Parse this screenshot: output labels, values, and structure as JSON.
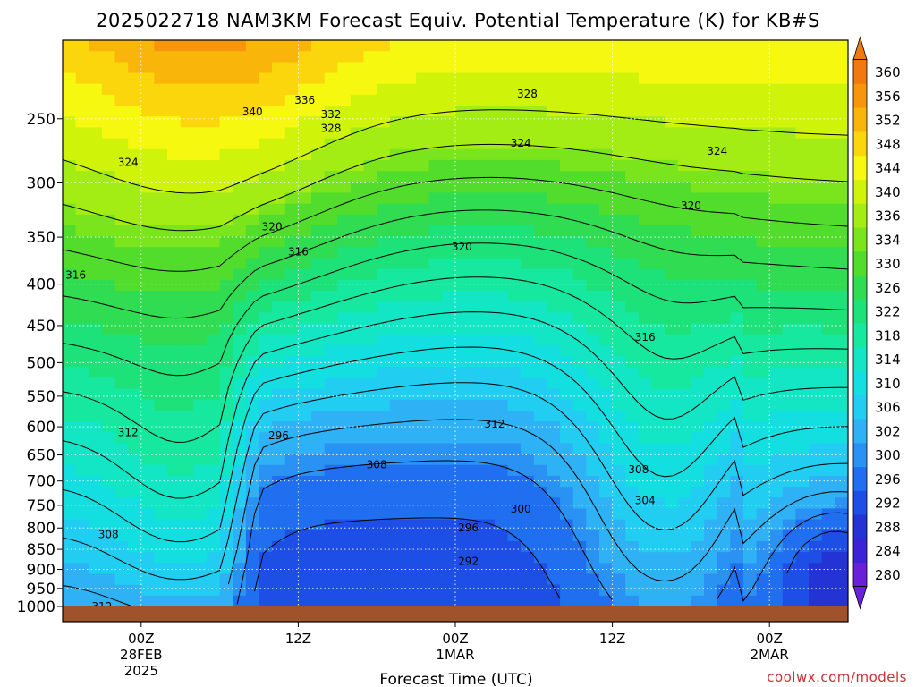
{
  "title": "2025022718 NAM3KM Forecast Equiv. Potential Temperature (K) for KB#S",
  "credit": "coolwx.com/models",
  "chart_data": {
    "type": "heatmap",
    "title": "2025022718 NAM3KM Forecast Equiv. Potential Temperature (K) for KB#S",
    "xlabel": "Forecast Time (UTC)",
    "ylabel": "",
    "units": "K",
    "y_axis": {
      "scale": "log",
      "inverted": true,
      "range": [
        1000,
        200
      ],
      "ticks": [
        250,
        300,
        350,
        400,
        450,
        500,
        550,
        600,
        650,
        700,
        750,
        800,
        850,
        900,
        950,
        1000
      ]
    },
    "x_axis": {
      "range_hours": [
        -6,
        54
      ],
      "ticks": [
        {
          "hour": 0,
          "lines": [
            "00Z",
            "28FEB",
            "2025"
          ]
        },
        {
          "hour": 12,
          "lines": [
            "12Z"
          ]
        },
        {
          "hour": 24,
          "lines": [
            "00Z",
            "1MAR"
          ]
        },
        {
          "hour": 36,
          "lines": [
            "12Z"
          ]
        },
        {
          "hour": 48,
          "lines": [
            "00Z",
            "2MAR"
          ]
        }
      ]
    },
    "grid": true,
    "colorbar": {
      "placement": "right",
      "levels": [
        280,
        284,
        288,
        292,
        296,
        300,
        302,
        306,
        310,
        314,
        318,
        322,
        326,
        330,
        334,
        336,
        340,
        344,
        348,
        352,
        356,
        360
      ],
      "colors": [
        "#6a1fd8",
        "#3c23d8",
        "#2333d4",
        "#1d4ee6",
        "#1f6ff0",
        "#2a92f3",
        "#2fb2f5",
        "#22cdf2",
        "#14dfe0",
        "#12e6c4",
        "#16e8a0",
        "#1de27a",
        "#30dc52",
        "#52dd2c",
        "#7ae41c",
        "#a3ed14",
        "#cff40a",
        "#f6f810",
        "#fbd60c",
        "#f9b50a",
        "#f7960c",
        "#f07a10"
      ],
      "labels": [
        "280",
        "284",
        "288",
        "292",
        "296",
        "300",
        "302",
        "306",
        "310",
        "314",
        "318",
        "322",
        "326",
        "330",
        "334",
        "336",
        "340",
        "344",
        "348",
        "352",
        "356",
        "360"
      ]
    },
    "contour_labels": [
      {
        "text": "340",
        "hour": 8.5,
        "p": 245
      },
      {
        "text": "336",
        "hour": 12.5,
        "p": 237
      },
      {
        "text": "332",
        "hour": 14.5,
        "p": 247
      },
      {
        "text": "328",
        "hour": 14.5,
        "p": 257
      },
      {
        "text": "328",
        "hour": 29.5,
        "p": 233
      },
      {
        "text": "324",
        "hour": -1,
        "p": 283
      },
      {
        "text": "324",
        "hour": 29,
        "p": 268
      },
      {
        "text": "324",
        "hour": 44,
        "p": 274
      },
      {
        "text": "320",
        "hour": 10,
        "p": 340
      },
      {
        "text": "320",
        "hour": 24.5,
        "p": 360
      },
      {
        "text": "320",
        "hour": 42,
        "p": 320
      },
      {
        "text": "316",
        "hour": -5,
        "p": 390
      },
      {
        "text": "316",
        "hour": 12,
        "p": 365
      },
      {
        "text": "316",
        "hour": 38.5,
        "p": 465
      },
      {
        "text": "312",
        "hour": -1,
        "p": 610
      },
      {
        "text": "312",
        "hour": 27,
        "p": 595
      },
      {
        "text": "312",
        "hour": -3,
        "p": 1000
      },
      {
        "text": "308",
        "hour": -2.5,
        "p": 815
      },
      {
        "text": "308",
        "hour": 18,
        "p": 668
      },
      {
        "text": "308",
        "hour": 38,
        "p": 678
      },
      {
        "text": "304",
        "hour": 38.5,
        "p": 740
      },
      {
        "text": "300",
        "hour": 29,
        "p": 758
      },
      {
        "text": "296",
        "hour": 10.5,
        "p": 615
      },
      {
        "text": "296",
        "hour": 25,
        "p": 800
      },
      {
        "text": "292",
        "hour": 25,
        "p": 880
      }
    ]
  }
}
